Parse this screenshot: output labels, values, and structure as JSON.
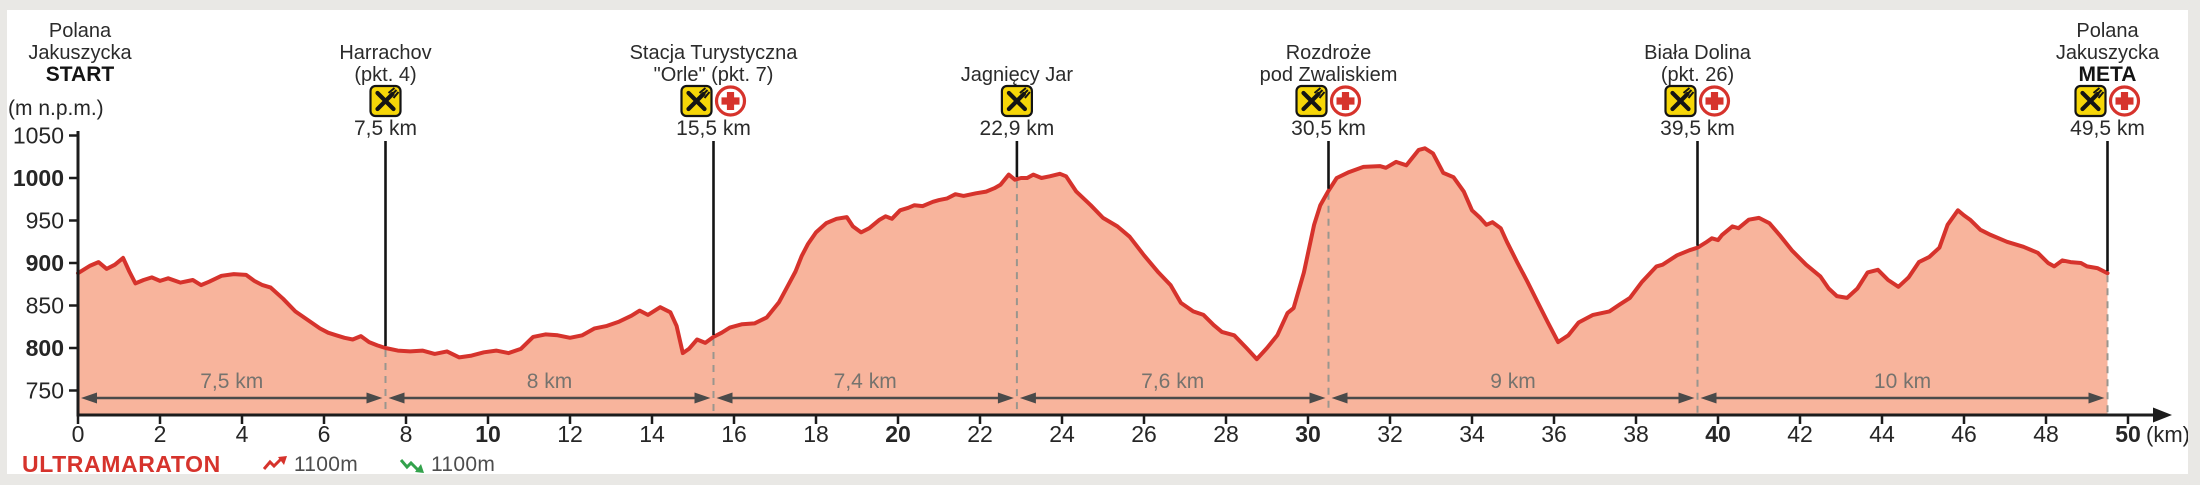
{
  "race": {
    "name": "ULTRAMARATON",
    "legend": {
      "elevation_gain": "1100m",
      "elevation_loss": "1100m"
    }
  },
  "axes": {
    "y_label": "(m n.p.m.)",
    "x_unit": "(km)",
    "y_min": 750,
    "y_max": 1050,
    "y_step": 50,
    "x_min": 0,
    "x_max": 50,
    "x_step": 2
  },
  "checkpoints": [
    {
      "id": "start",
      "lines": [
        "Polana",
        "Jakuszycka"
      ],
      "emphasis": "START",
      "km": 0,
      "distance_label": "",
      "icons": {
        "food": false,
        "medical": false
      }
    },
    {
      "id": "harrachov",
      "lines": [
        "Harrachov",
        "(pkt. 4)"
      ],
      "emphasis": "",
      "km": 7.5,
      "distance_label": "7,5 km",
      "icons": {
        "food": true,
        "medical": false
      }
    },
    {
      "id": "orle",
      "lines": [
        "Stacja Turystyczna",
        "\"Orle\" (pkt. 7)"
      ],
      "emphasis": "",
      "km": 15.5,
      "distance_label": "15,5 km",
      "icons": {
        "food": true,
        "medical": true
      }
    },
    {
      "id": "jagniecy-jar",
      "lines": [
        "Jagnięcy Jar"
      ],
      "emphasis": "",
      "km": 22.9,
      "distance_label": "22,9 km",
      "icons": {
        "food": true,
        "medical": false
      }
    },
    {
      "id": "rozdroze",
      "lines": [
        "Rozdroże",
        "pod Zwaliskiem"
      ],
      "emphasis": "",
      "km": 30.5,
      "distance_label": "30,5 km",
      "icons": {
        "food": true,
        "medical": true
      }
    },
    {
      "id": "biala-dolina",
      "lines": [
        "Biała Dolina",
        "(pkt. 26)"
      ],
      "emphasis": "",
      "km": 39.5,
      "distance_label": "39,5 km",
      "icons": {
        "food": true,
        "medical": true
      }
    },
    {
      "id": "meta",
      "lines": [
        "Polana",
        "Jakuszycka"
      ],
      "emphasis": "META",
      "km": 49.5,
      "distance_label": "49,5 km",
      "icons": {
        "food": true,
        "medical": true
      }
    }
  ],
  "segments": [
    {
      "label": "7,5 km",
      "from_km": 0,
      "to_km": 7.5
    },
    {
      "label": "8 km",
      "from_km": 7.5,
      "to_km": 15.5
    },
    {
      "label": "7,4 km",
      "from_km": 15.5,
      "to_km": 22.9
    },
    {
      "label": "7,6 km",
      "from_km": 22.9,
      "to_km": 30.5
    },
    {
      "label": "9 km",
      "from_km": 30.5,
      "to_km": 39.5
    },
    {
      "label": "10 km",
      "from_km": 39.5,
      "to_km": 49.5
    }
  ],
  "colors": {
    "line": "#d6332c",
    "fill": "#f8b49c",
    "icon_yellow": "#f6d608",
    "icon_black": "#141414",
    "medical_red": "#d6332c",
    "axis": "#1c1c1c",
    "tick_label": "#262626",
    "segment_gray": "#76736e",
    "segment_arrow": "#4a4a4a",
    "dashed": "#9a968e",
    "legend_text": "#4d4d4d",
    "gain": "#d6332c",
    "loss": "#33a24c",
    "edge": "#e9e8e5"
  },
  "chart_data": {
    "type": "area",
    "title": "ULTRAMARATON",
    "xlabel": "(km)",
    "ylabel": "(m n.p.m.)",
    "xlim": [
      0,
      50
    ],
    "ylim": [
      750,
      1050
    ],
    "x_tick_step": 2,
    "y_tick_step": 50,
    "grid": false,
    "series": [
      {
        "name": "elevation",
        "points": [
          [
            0,
            888
          ],
          [
            0.3,
            897
          ],
          [
            0.5,
            901
          ],
          [
            0.7,
            893
          ],
          [
            0.9,
            898
          ],
          [
            1.1,
            906
          ],
          [
            1.25,
            890
          ],
          [
            1.4,
            876
          ],
          [
            1.6,
            880
          ],
          [
            1.8,
            883
          ],
          [
            2.0,
            879
          ],
          [
            2.2,
            882
          ],
          [
            2.5,
            877
          ],
          [
            2.8,
            880
          ],
          [
            3.0,
            874
          ],
          [
            3.2,
            878
          ],
          [
            3.5,
            885
          ],
          [
            3.8,
            887
          ],
          [
            4.1,
            886
          ],
          [
            4.3,
            879
          ],
          [
            4.5,
            874
          ],
          [
            4.7,
            871
          ],
          [
            5.0,
            858
          ],
          [
            5.3,
            843
          ],
          [
            5.6,
            833
          ],
          [
            5.9,
            823
          ],
          [
            6.1,
            818
          ],
          [
            6.3,
            815
          ],
          [
            6.5,
            812
          ],
          [
            6.7,
            810
          ],
          [
            6.9,
            814
          ],
          [
            7.1,
            807
          ],
          [
            7.3,
            803
          ],
          [
            7.5,
            800
          ],
          [
            7.8,
            797
          ],
          [
            8.1,
            796
          ],
          [
            8.4,
            797
          ],
          [
            8.7,
            793
          ],
          [
            9.0,
            796
          ],
          [
            9.3,
            789
          ],
          [
            9.6,
            791
          ],
          [
            9.9,
            795
          ],
          [
            10.2,
            797
          ],
          [
            10.5,
            794
          ],
          [
            10.8,
            799
          ],
          [
            11.1,
            813
          ],
          [
            11.4,
            816
          ],
          [
            11.7,
            815
          ],
          [
            12.0,
            812
          ],
          [
            12.3,
            815
          ],
          [
            12.6,
            823
          ],
          [
            12.9,
            826
          ],
          [
            13.2,
            831
          ],
          [
            13.5,
            838
          ],
          [
            13.7,
            844
          ],
          [
            13.9,
            839
          ],
          [
            14.2,
            848
          ],
          [
            14.45,
            842
          ],
          [
            14.6,
            826
          ],
          [
            14.75,
            794
          ],
          [
            14.9,
            799
          ],
          [
            15.1,
            810
          ],
          [
            15.3,
            806
          ],
          [
            15.5,
            813
          ],
          [
            15.7,
            818
          ],
          [
            15.9,
            824
          ],
          [
            16.2,
            828
          ],
          [
            16.5,
            829
          ],
          [
            16.8,
            836
          ],
          [
            17.1,
            854
          ],
          [
            17.3,
            872
          ],
          [
            17.5,
            890
          ],
          [
            17.65,
            908
          ],
          [
            17.8,
            922
          ],
          [
            18.0,
            936
          ],
          [
            18.25,
            947
          ],
          [
            18.5,
            952
          ],
          [
            18.75,
            954
          ],
          [
            18.9,
            943
          ],
          [
            19.1,
            936
          ],
          [
            19.3,
            941
          ],
          [
            19.55,
            951
          ],
          [
            19.7,
            955
          ],
          [
            19.85,
            952
          ],
          [
            20.05,
            962
          ],
          [
            20.25,
            965
          ],
          [
            20.4,
            968
          ],
          [
            20.6,
            967
          ],
          [
            20.85,
            972
          ],
          [
            21.0,
            974
          ],
          [
            21.2,
            976
          ],
          [
            21.4,
            981
          ],
          [
            21.6,
            979
          ],
          [
            21.9,
            982
          ],
          [
            22.15,
            984
          ],
          [
            22.35,
            988
          ],
          [
            22.5,
            992
          ],
          [
            22.7,
            1004
          ],
          [
            22.85,
            998
          ],
          [
            23.0,
            1000
          ],
          [
            23.15,
            1000
          ],
          [
            23.3,
            1004
          ],
          [
            23.5,
            1000
          ],
          [
            23.7,
            1002
          ],
          [
            23.95,
            1005
          ],
          [
            24.1,
            1002
          ],
          [
            24.35,
            984
          ],
          [
            24.7,
            968
          ],
          [
            25.0,
            953
          ],
          [
            25.35,
            943
          ],
          [
            25.65,
            931
          ],
          [
            26.0,
            909
          ],
          [
            26.35,
            889
          ],
          [
            26.65,
            874
          ],
          [
            26.9,
            853
          ],
          [
            27.2,
            843
          ],
          [
            27.45,
            839
          ],
          [
            27.7,
            827
          ],
          [
            27.9,
            819
          ],
          [
            28.2,
            815
          ],
          [
            28.5,
            800
          ],
          [
            28.75,
            787
          ],
          [
            29.0,
            800
          ],
          [
            29.25,
            815
          ],
          [
            29.5,
            841
          ],
          [
            29.65,
            847
          ],
          [
            29.9,
            889
          ],
          [
            30.15,
            945
          ],
          [
            30.3,
            968
          ],
          [
            30.5,
            985
          ],
          [
            30.7,
            1000
          ],
          [
            31.0,
            1007
          ],
          [
            31.35,
            1013
          ],
          [
            31.75,
            1014
          ],
          [
            31.9,
            1012
          ],
          [
            32.15,
            1019
          ],
          [
            32.4,
            1015
          ],
          [
            32.55,
            1024
          ],
          [
            32.7,
            1033
          ],
          [
            32.85,
            1035
          ],
          [
            33.05,
            1029
          ],
          [
            33.3,
            1006
          ],
          [
            33.55,
            1001
          ],
          [
            33.8,
            984
          ],
          [
            34.0,
            962
          ],
          [
            34.2,
            953
          ],
          [
            34.35,
            945
          ],
          [
            34.5,
            948
          ],
          [
            34.7,
            941
          ],
          [
            34.85,
            925
          ],
          [
            35.1,
            901
          ],
          [
            35.35,
            878
          ],
          [
            35.6,
            854
          ],
          [
            35.85,
            830
          ],
          [
            36.1,
            807
          ],
          [
            36.35,
            815
          ],
          [
            36.6,
            830
          ],
          [
            36.95,
            839
          ],
          [
            37.35,
            843
          ],
          [
            37.6,
            851
          ],
          [
            37.85,
            859
          ],
          [
            38.15,
            878
          ],
          [
            38.5,
            896
          ],
          [
            38.65,
            898
          ],
          [
            39.0,
            909
          ],
          [
            39.3,
            915
          ],
          [
            39.5,
            918
          ],
          [
            39.7,
            924
          ],
          [
            39.85,
            929
          ],
          [
            40.0,
            927
          ],
          [
            40.1,
            933
          ],
          [
            40.35,
            943
          ],
          [
            40.5,
            941
          ],
          [
            40.75,
            951
          ],
          [
            41.0,
            953
          ],
          [
            41.25,
            947
          ],
          [
            41.5,
            933
          ],
          [
            41.8,
            915
          ],
          [
            42.15,
            898
          ],
          [
            42.5,
            884
          ],
          [
            42.7,
            870
          ],
          [
            42.9,
            861
          ],
          [
            43.15,
            859
          ],
          [
            43.4,
            870
          ],
          [
            43.65,
            889
          ],
          [
            43.9,
            892
          ],
          [
            44.15,
            880
          ],
          [
            44.4,
            872
          ],
          [
            44.65,
            883
          ],
          [
            44.9,
            901
          ],
          [
            45.15,
            907
          ],
          [
            45.4,
            918
          ],
          [
            45.6,
            945
          ],
          [
            45.85,
            962
          ],
          [
            46.0,
            956
          ],
          [
            46.15,
            951
          ],
          [
            46.4,
            939
          ],
          [
            46.65,
            933
          ],
          [
            47.05,
            925
          ],
          [
            47.45,
            919
          ],
          [
            47.8,
            912
          ],
          [
            48.05,
            900
          ],
          [
            48.2,
            896
          ],
          [
            48.4,
            903
          ],
          [
            48.6,
            901
          ],
          [
            48.85,
            900
          ],
          [
            49.0,
            896
          ],
          [
            49.25,
            894
          ],
          [
            49.5,
            888
          ]
        ]
      }
    ]
  }
}
